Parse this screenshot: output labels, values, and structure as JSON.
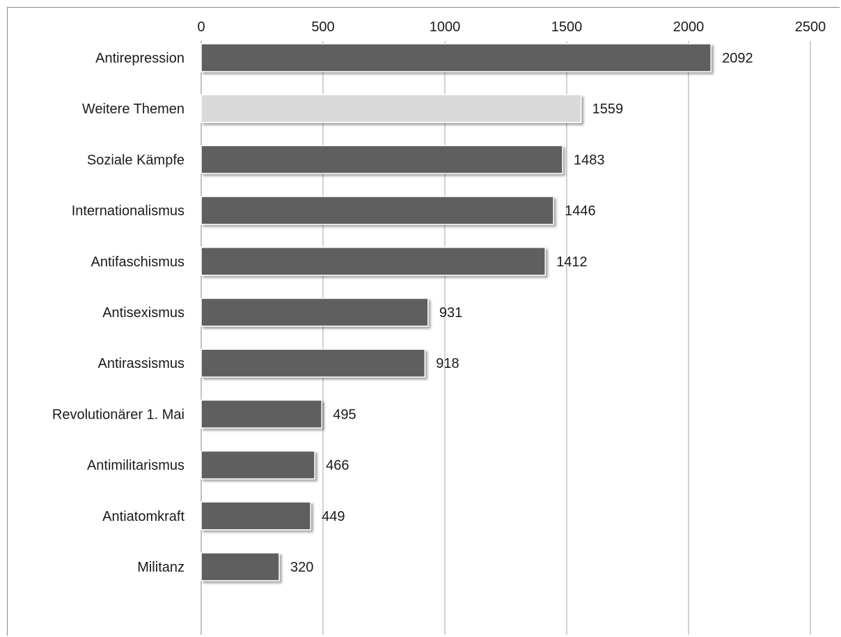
{
  "chart_data": {
    "type": "bar",
    "orientation": "horizontal",
    "categories": [
      "Antirepression",
      "Weitere Themen",
      "Soziale Kämpfe",
      "Internationalismus",
      "Antifaschismus",
      "Antisexismus",
      "Antirassismus",
      "Revolutionärer 1. Mai",
      "Antimilitarismus",
      "Antiatomkraft",
      "Militanz"
    ],
    "values": [
      2092,
      1559,
      1483,
      1446,
      1412,
      931,
      918,
      495,
      466,
      449,
      320
    ],
    "value_labels": [
      "2092",
      "1559",
      "1483",
      "1446",
      "1412",
      "931",
      "918",
      "495",
      "466",
      "449",
      "320"
    ],
    "bar_colors": [
      "#5f5f5f",
      "#d9d9d9",
      "#5f5f5f",
      "#5f5f5f",
      "#5f5f5f",
      "#5f5f5f",
      "#5f5f5f",
      "#5f5f5f",
      "#5f5f5f",
      "#5f5f5f",
      "#5f5f5f"
    ],
    "xlim": [
      0,
      2500
    ],
    "x_ticks": [
      0,
      500,
      1000,
      1500,
      2000,
      2500
    ],
    "x_tick_labels": [
      "0",
      "500",
      "1000",
      "1500",
      "2000",
      "2500"
    ],
    "x_axis_position": "top",
    "grid": true,
    "legend": false,
    "title": "",
    "xlabel": "",
    "ylabel": ""
  },
  "colors": {
    "bar_dark": "#5f5f5f",
    "bar_light": "#d9d9d9",
    "gridline": "#a6a6a6",
    "axis": "#868686",
    "text": "#1a1a1a"
  }
}
